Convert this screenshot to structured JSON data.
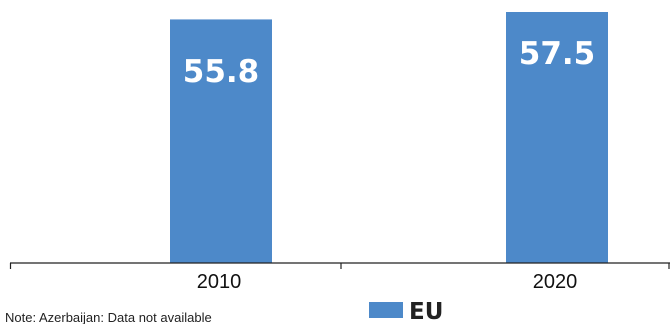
{
  "chart_data": {
    "type": "bar",
    "categories": [
      "2010",
      "2020"
    ],
    "series": [
      {
        "name": "EU",
        "values": [
          55.8,
          57.5
        ],
        "value_labels": [
          "55.8",
          "57.5"
        ],
        "color": "#4d89c9"
      }
    ],
    "title": "",
    "xlabel": "",
    "ylabel": "",
    "ylim": [
      0,
      57.5
    ],
    "grid": false,
    "legend": "bottom-center",
    "note": "Note: Azerbaijan: Data not available"
  },
  "colors": {
    "bar": "#4d89c9",
    "axis": "#222222",
    "bar_text": "#ffffff"
  }
}
